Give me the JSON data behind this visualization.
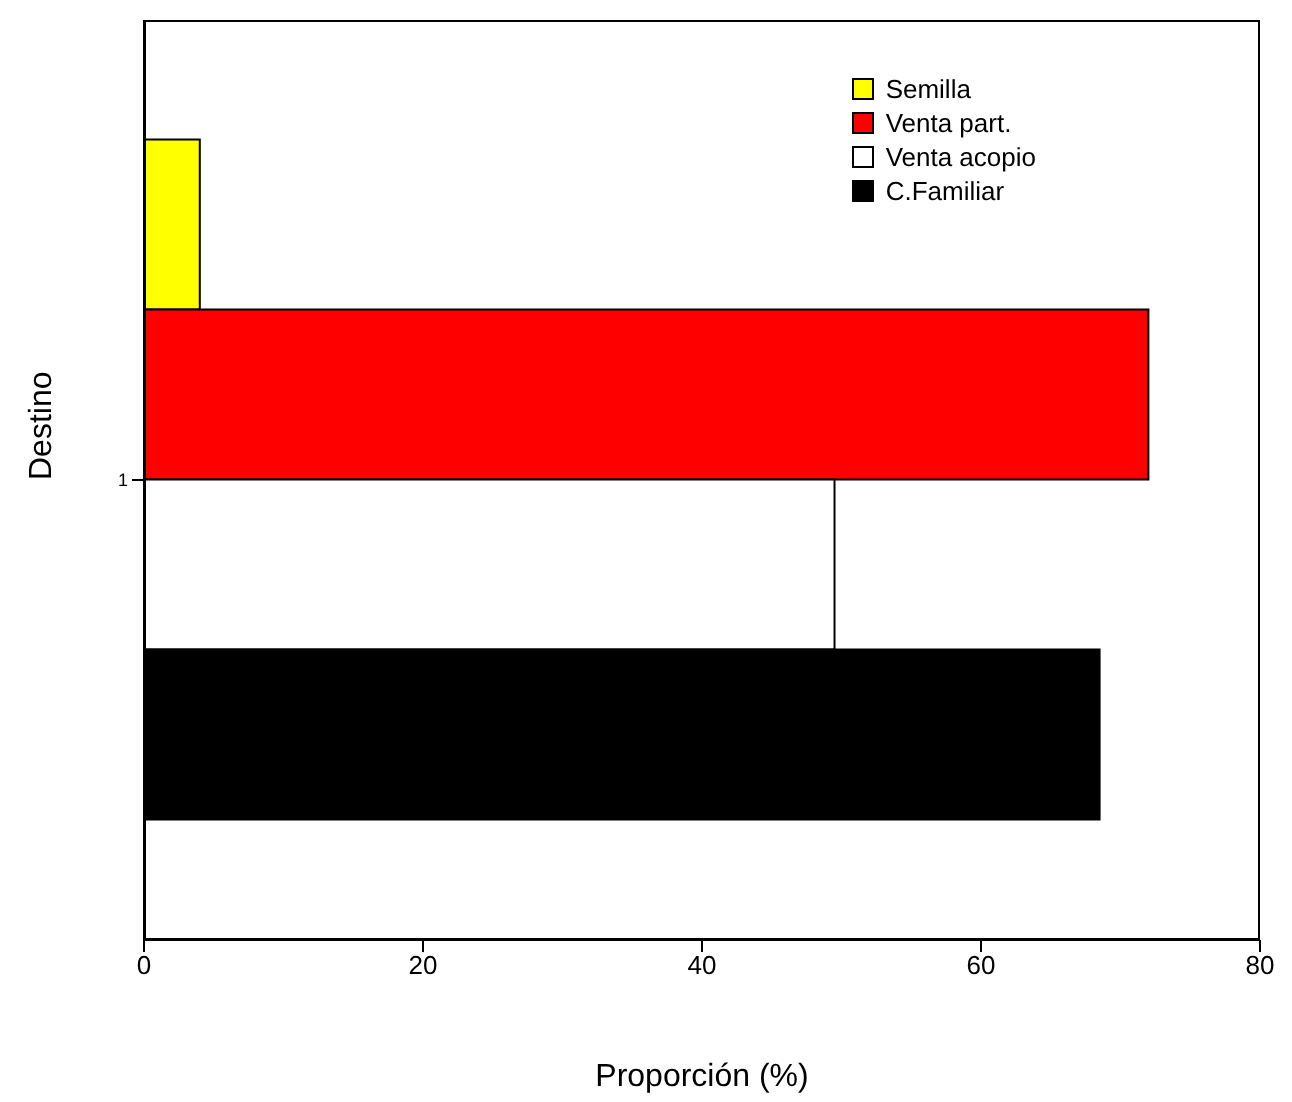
{
  "chart_data": {
    "type": "bar",
    "orientation": "horizontal",
    "xlabel": "Proporción (%)",
    "ylabel": "Destino",
    "categories": [
      "1"
    ],
    "series": [
      {
        "name": "Semilla",
        "color": "#ffff00",
        "values": [
          4
        ]
      },
      {
        "name": "Venta part.",
        "color": "#ff0000",
        "values": [
          72
        ]
      },
      {
        "name": "Venta acopio",
        "color": "#ffffff",
        "values": [
          49.5
        ]
      },
      {
        "name": "C.Familiar",
        "color": "#000000",
        "values": [
          68.5
        ]
      }
    ],
    "xlim": [
      0,
      80
    ],
    "xticks": [
      0,
      20,
      40,
      60,
      80
    ],
    "grid": false,
    "legend": "top right"
  }
}
